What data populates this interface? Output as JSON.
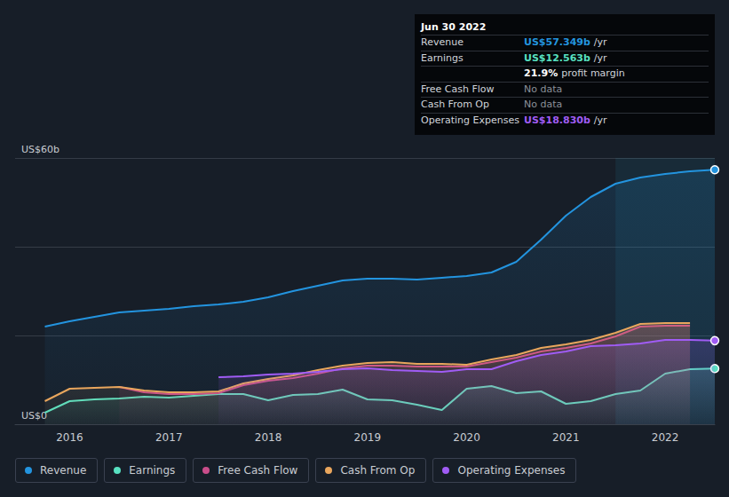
{
  "chart_data": {
    "type": "area",
    "x": [
      2015.75,
      2016.0,
      2016.25,
      2016.5,
      2016.75,
      2017.0,
      2017.25,
      2017.5,
      2017.75,
      2018.0,
      2018.25,
      2018.5,
      2018.75,
      2019.0,
      2019.25,
      2019.5,
      2019.75,
      2020.0,
      2020.25,
      2020.5,
      2020.75,
      2021.0,
      2021.25,
      2021.5,
      2021.75,
      2022.0,
      2022.25,
      2022.5
    ],
    "xlim": [
      2015.45,
      2022.5
    ],
    "xticks": [
      2016,
      2017,
      2018,
      2019,
      2020,
      2021,
      2022
    ],
    "ylim": [
      0,
      60
    ],
    "yticks": [
      {
        "value": 0,
        "label": "US$0"
      },
      {
        "value": 20,
        "label": null
      },
      {
        "value": 40,
        "label": null
      },
      {
        "value": 60,
        "label": "US$60b"
      }
    ],
    "grid": true,
    "legend": "bottom",
    "series": [
      {
        "name": "Revenue",
        "color": "#2394df",
        "values": [
          22,
          23.2,
          24.2,
          25.2,
          25.6,
          26,
          26.6,
          27,
          27.6,
          28.6,
          30,
          31.2,
          32.4,
          32.8,
          32.8,
          32.6,
          33,
          33.4,
          34.2,
          36.6,
          41.6,
          47,
          51.2,
          54.2,
          55.6,
          56.4,
          57,
          57.349
        ]
      },
      {
        "name": "Earnings",
        "color": "#58e1c1",
        "values": [
          2.6,
          5.2,
          5.6,
          5.8,
          6.2,
          6,
          6.4,
          6.8,
          6.8,
          5.4,
          6.6,
          6.8,
          7.8,
          5.6,
          5.4,
          4.4,
          3.2,
          8,
          8.6,
          7,
          7.4,
          4.6,
          5.2,
          6.8,
          7.6,
          11.4,
          12.4,
          12.563
        ]
      },
      {
        "name": "Free Cash Flow",
        "color": "#c94d8a",
        "values": [
          null,
          null,
          null,
          8.4,
          7.2,
          6.8,
          6.8,
          7,
          8.8,
          9.8,
          10.4,
          11.4,
          12.6,
          13.2,
          13.2,
          13,
          13,
          13,
          14,
          15,
          16.4,
          17.2,
          18.2,
          19.8,
          22,
          22.2,
          22.2,
          null
        ]
      },
      {
        "name": "Cash From Op",
        "color": "#e9a65d",
        "values": [
          5.2,
          8,
          8.2,
          8.4,
          7.6,
          7.2,
          7.2,
          7.4,
          9.2,
          10.2,
          11,
          12.2,
          13.2,
          13.8,
          14,
          13.6,
          13.6,
          13.4,
          14.6,
          15.6,
          17.2,
          18,
          19,
          20.6,
          22.6,
          22.8,
          22.8,
          null
        ]
      },
      {
        "name": "Operating Expenses",
        "color": "#a05cf5",
        "values": [
          null,
          null,
          null,
          null,
          null,
          null,
          null,
          10.6,
          10.8,
          11.2,
          11.4,
          11.8,
          12.4,
          12.6,
          12.2,
          12,
          11.8,
          12.4,
          12.4,
          14.2,
          15.6,
          16.4,
          17.6,
          17.8,
          18.2,
          19,
          19,
          18.83
        ]
      }
    ],
    "annotation": {
      "title": "Jun 30 2022",
      "rows": [
        {
          "label": "Revenue",
          "text": "US$57.349b",
          "unit": "/yr"
        },
        {
          "label": "Earnings",
          "text": "US$12.563b",
          "unit": "/yr"
        },
        {
          "text": "21.9%",
          "unit": "profit margin"
        },
        {
          "label": "Free Cash Flow",
          "text": "No data"
        },
        {
          "label": "Cash From Op",
          "text": "No data"
        },
        {
          "label": "Operating Expenses",
          "text": "US$18.830b",
          "unit": "/yr"
        }
      ]
    }
  }
}
